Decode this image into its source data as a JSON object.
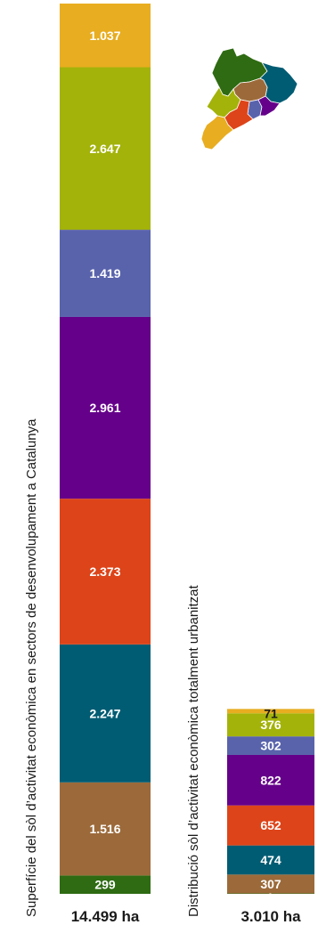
{
  "chart_data": [
    {
      "type": "bar",
      "stacked": true,
      "title": "Superfície del  sòl d’activitat econòmica en sectors de desenvolupament a Catalunya",
      "total_label": "14.499 ha",
      "segments": [
        {
          "value": 299,
          "label": "299",
          "color": "#2e6b12"
        },
        {
          "value": 1516,
          "label": "1.516",
          "color": "#9c6a3a"
        },
        {
          "value": 2247,
          "label": "2.247",
          "color": "#005c73"
        },
        {
          "value": 2373,
          "label": "2.373",
          "color": "#dd4419"
        },
        {
          "value": 2961,
          "label": "2.961",
          "color": "#65008a"
        },
        {
          "value": 1419,
          "label": "1.419",
          "color": "#5963ac"
        },
        {
          "value": 2647,
          "label": "2.647",
          "color": "#a3b30a"
        },
        {
          "value": 1037,
          "label": "1.037",
          "color": "#e8ad20"
        }
      ]
    },
    {
      "type": "bar",
      "stacked": true,
      "title": "Distribució sòl d’activitat econòmica totalment urbanitzat",
      "total_label": "3.010 ha",
      "segments": [
        {
          "value": 7,
          "label": "7",
          "color": "#2e6b12"
        },
        {
          "value": 307,
          "label": "307",
          "color": "#9c6a3a"
        },
        {
          "value": 474,
          "label": "474",
          "color": "#005c73"
        },
        {
          "value": 652,
          "label": "652",
          "color": "#dd4419"
        },
        {
          "value": 822,
          "label": "822",
          "color": "#65008a"
        },
        {
          "value": 302,
          "label": "302",
          "color": "#5963ac"
        },
        {
          "value": 376,
          "label": "376",
          "color": "#a3b30a"
        },
        {
          "value": 71,
          "label": "71",
          "color": "#e8ad20"
        }
      ]
    }
  ],
  "map_colors": {
    "alt_pirineu": "#2e6b12",
    "comarques_gironines": "#005c73",
    "comarques_centrals": "#9c6a3a",
    "ponent": "#a3b30a",
    "penedes": "#5963ac",
    "metropolita": "#65008a",
    "camp_tarragona": "#dd4419",
    "terres_ebre": "#e8ad20"
  }
}
